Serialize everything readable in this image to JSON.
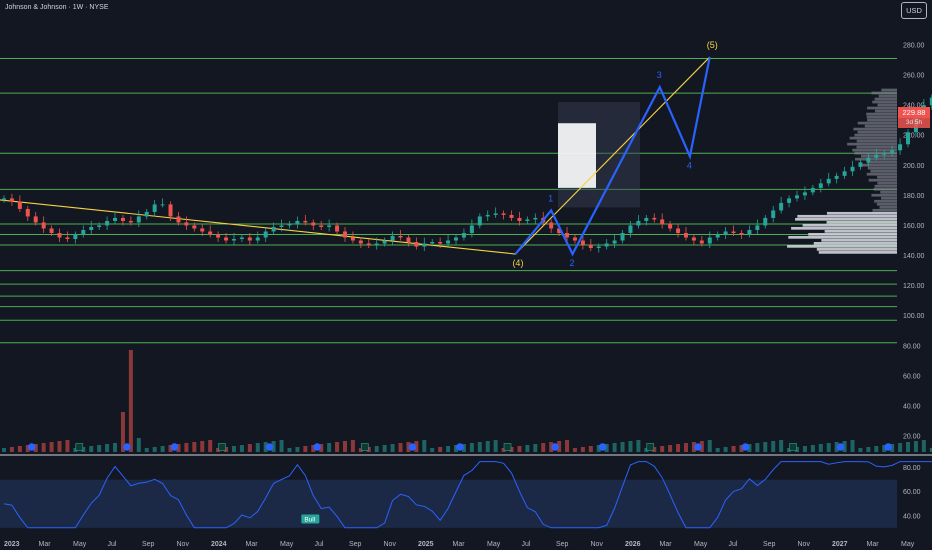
{
  "header": {
    "symbol": "Johnson & Johnson · 1W · NYSE",
    "currency": "USD"
  },
  "colors": {
    "background": "#131722",
    "up": "#26a69a",
    "down": "#ef5350",
    "level_line": "#4caf50",
    "trend_line": "#f5d442",
    "wave_line": "#2962ff",
    "rsi_line": "#2962ff",
    "rsi_band": "#1e2b4a",
    "profile": "#d1d4dc"
  },
  "price_tags": {
    "last_price": "229.88",
    "countdown": "3d 5h"
  },
  "chart_data": {
    "type": "candlestick",
    "price_axis": {
      "ticks": [
        "20.00",
        "40.00",
        "60.00",
        "80.00",
        "100.00",
        "120.00",
        "140.00",
        "160.00",
        "180.00",
        "200.00",
        "220.00",
        "240.00",
        "260.00",
        "280.00"
      ],
      "ylim": [
        14,
        288
      ]
    },
    "time_axis": {
      "labels": [
        "2023",
        "Mar",
        "May",
        "Jul",
        "Sep",
        "Nov",
        "2024",
        "Mar",
        "May",
        "Jul",
        "Sep",
        "Nov",
        "2025",
        "Mar",
        "May",
        "Jul",
        "Sep",
        "Nov",
        "2026",
        "Mar",
        "May",
        "Jul",
        "Sep",
        "Nov",
        "2027",
        "Mar",
        "May"
      ]
    },
    "horizontal_levels": [
      271,
      248,
      208,
      184,
      161,
      154,
      147,
      130,
      121,
      113,
      106,
      97,
      82
    ],
    "trend_line_down": {
      "from": [
        0,
        177
      ],
      "to": [
        65.0,
        141
      ]
    },
    "trend_line_up": {
      "from": [
        65.0,
        141
      ],
      "to": [
        89.5,
        272
      ]
    },
    "wave_path": [
      [
        65.0,
        141
      ],
      [
        69.5,
        170
      ],
      [
        72.2,
        141
      ],
      [
        83.2,
        252
      ],
      [
        87.0,
        206
      ],
      [
        89.5,
        272
      ]
    ],
    "wave_labels": [
      {
        "text": "(4)",
        "x": 65.0,
        "y": 141,
        "color": "#f5d442",
        "pos": "below"
      },
      {
        "text": "1",
        "x": 69.5,
        "y": 170,
        "color": "#2962ff",
        "pos": "above"
      },
      {
        "text": "2",
        "x": 72.2,
        "y": 141,
        "color": "#2962ff",
        "pos": "below"
      },
      {
        "text": "3",
        "x": 83.2,
        "y": 252,
        "color": "#2962ff",
        "pos": "above"
      },
      {
        "text": "4",
        "x": 87.0,
        "y": 206,
        "color": "#2962ff",
        "pos": "below"
      },
      {
        "text": "(5)",
        "x": 89.5,
        "y": 272,
        "color": "#f5d442",
        "pos": "above"
      }
    ],
    "closes": [
      178,
      176,
      171,
      166,
      162,
      158,
      155,
      152,
      151,
      154,
      157,
      159,
      160,
      163,
      165,
      163,
      162,
      166,
      169,
      174,
      174,
      166,
      162,
      160,
      158,
      156,
      154,
      152,
      150,
      151,
      152,
      150,
      152,
      156,
      159,
      160,
      161,
      163,
      162,
      160,
      159,
      160,
      156,
      152,
      150,
      148,
      147,
      148,
      150,
      153,
      152,
      149,
      146,
      148,
      149,
      148,
      150,
      152,
      155,
      160,
      166,
      167,
      168,
      167,
      165,
      163,
      164,
      165,
      162,
      158,
      155,
      152,
      150,
      147,
      145,
      146,
      148,
      150,
      155,
      160,
      163,
      165,
      164,
      161,
      158,
      155,
      152,
      150,
      148,
      152,
      154,
      156,
      155,
      154,
      157,
      160,
      165,
      170,
      175,
      178,
      180,
      182,
      185,
      188,
      191,
      193,
      196,
      199,
      202,
      205,
      207,
      208,
      210,
      214,
      222,
      232,
      240,
      245,
      249,
      247,
      242,
      235,
      229.88
    ],
    "rsi": {
      "levels": [
        70,
        30
      ],
      "ticks": [
        "40.00",
        "60.00",
        "80.00"
      ],
      "annotation": "Bull"
    },
    "event_markers": [
      "D",
      "E",
      "D"
    ]
  }
}
